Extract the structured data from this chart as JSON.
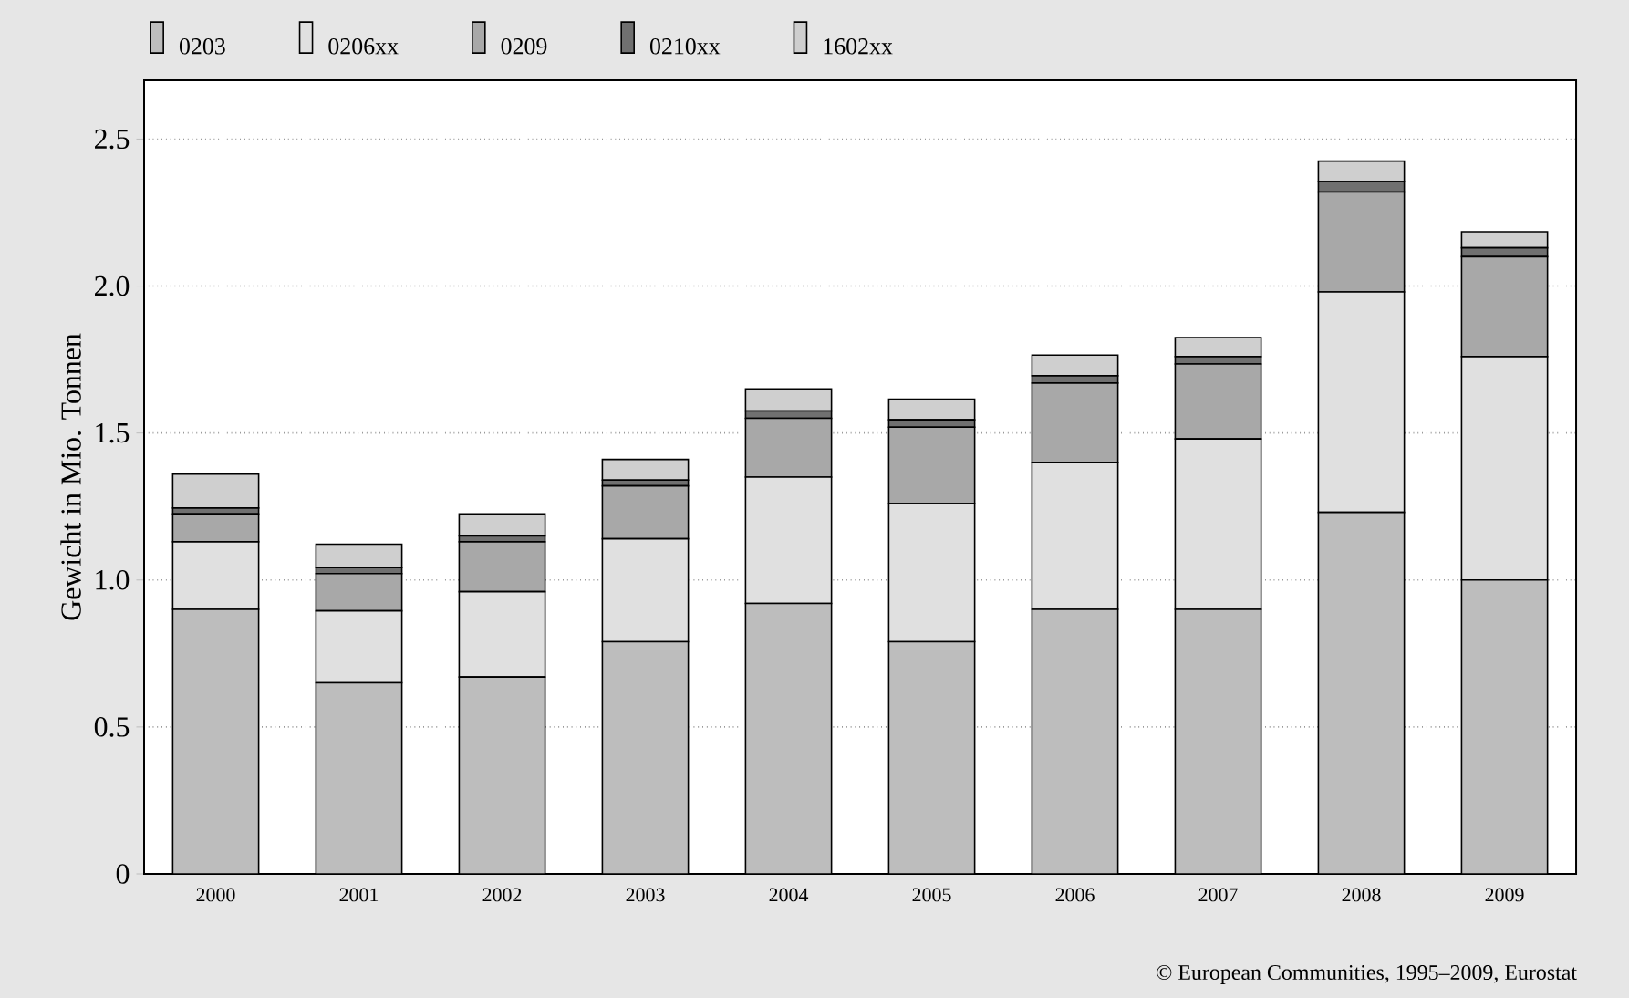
{
  "chart_data": {
    "type": "bar",
    "stacked": true,
    "ylabel": "Gewicht in Mio. Tonnen",
    "categories": [
      "2000",
      "2001",
      "2002",
      "2003",
      "2004",
      "2005",
      "2006",
      "2007",
      "2008",
      "2009"
    ],
    "series": [
      {
        "name": "0203",
        "color": "#bdbdbd",
        "values": [
          0.9,
          0.65,
          0.67,
          0.79,
          0.92,
          0.79,
          0.9,
          0.9,
          1.23,
          1.0
        ]
      },
      {
        "name": "0206xx",
        "color": "#e0e0e0",
        "values": [
          0.23,
          0.245,
          0.29,
          0.35,
          0.43,
          0.47,
          0.5,
          0.58,
          0.75,
          0.76
        ]
      },
      {
        "name": "0209",
        "color": "#a8a8a8",
        "values": [
          0.095,
          0.127,
          0.17,
          0.18,
          0.2,
          0.26,
          0.27,
          0.255,
          0.34,
          0.34
        ]
      },
      {
        "name": "0210xx",
        "color": "#707070",
        "values": [
          0.02,
          0.02,
          0.02,
          0.02,
          0.025,
          0.025,
          0.025,
          0.025,
          0.035,
          0.03
        ]
      },
      {
        "name": "1602xx",
        "color": "#cfcfcf",
        "values": [
          0.115,
          0.08,
          0.075,
          0.07,
          0.075,
          0.07,
          0.07,
          0.065,
          0.07,
          0.055
        ]
      }
    ],
    "ylim": [
      0,
      2.7
    ],
    "yticks": [
      0,
      0.5,
      {
        "value": 1,
        "label": "1.0"
      },
      1.5,
      {
        "value": 2,
        "label": "2.0"
      },
      2.5
    ],
    "grid": "y",
    "legend": "top",
    "annotations": [
      "© European Communities, 1995–2009, Eurostat"
    ]
  }
}
